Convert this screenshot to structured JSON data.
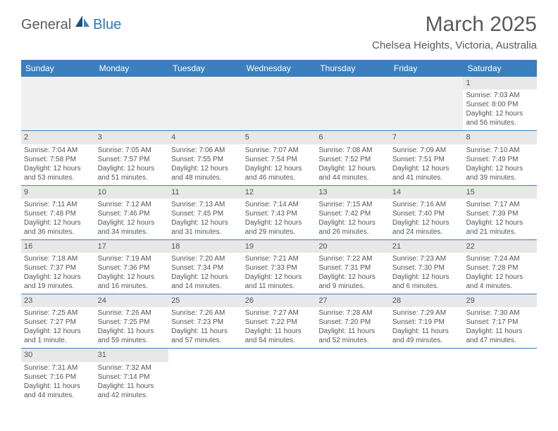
{
  "logo": {
    "general": "General",
    "blue": "Blue"
  },
  "title": "March 2025",
  "location": "Chelsea Heights, Victoria, Australia",
  "colors": {
    "header_bg": "#3b7fbf",
    "header_text": "#ffffff",
    "daynum_bg": "#e8e8e8",
    "border": "#3b7fbf",
    "text": "#555555",
    "logo_blue": "#2a7ab8"
  },
  "dayHeaders": [
    "Sunday",
    "Monday",
    "Tuesday",
    "Wednesday",
    "Thursday",
    "Friday",
    "Saturday"
  ],
  "weeks": [
    [
      null,
      null,
      null,
      null,
      null,
      null,
      {
        "n": "1",
        "sr": "Sunrise: 7:03 AM",
        "ss": "Sunset: 8:00 PM",
        "dl1": "Daylight: 12 hours",
        "dl2": "and 56 minutes."
      }
    ],
    [
      {
        "n": "2",
        "sr": "Sunrise: 7:04 AM",
        "ss": "Sunset: 7:58 PM",
        "dl1": "Daylight: 12 hours",
        "dl2": "and 53 minutes."
      },
      {
        "n": "3",
        "sr": "Sunrise: 7:05 AM",
        "ss": "Sunset: 7:57 PM",
        "dl1": "Daylight: 12 hours",
        "dl2": "and 51 minutes."
      },
      {
        "n": "4",
        "sr": "Sunrise: 7:06 AM",
        "ss": "Sunset: 7:55 PM",
        "dl1": "Daylight: 12 hours",
        "dl2": "and 48 minutes."
      },
      {
        "n": "5",
        "sr": "Sunrise: 7:07 AM",
        "ss": "Sunset: 7:54 PM",
        "dl1": "Daylight: 12 hours",
        "dl2": "and 46 minutes."
      },
      {
        "n": "6",
        "sr": "Sunrise: 7:08 AM",
        "ss": "Sunset: 7:52 PM",
        "dl1": "Daylight: 12 hours",
        "dl2": "and 44 minutes."
      },
      {
        "n": "7",
        "sr": "Sunrise: 7:09 AM",
        "ss": "Sunset: 7:51 PM",
        "dl1": "Daylight: 12 hours",
        "dl2": "and 41 minutes."
      },
      {
        "n": "8",
        "sr": "Sunrise: 7:10 AM",
        "ss": "Sunset: 7:49 PM",
        "dl1": "Daylight: 12 hours",
        "dl2": "and 39 minutes."
      }
    ],
    [
      {
        "n": "9",
        "sr": "Sunrise: 7:11 AM",
        "ss": "Sunset: 7:48 PM",
        "dl1": "Daylight: 12 hours",
        "dl2": "and 36 minutes."
      },
      {
        "n": "10",
        "sr": "Sunrise: 7:12 AM",
        "ss": "Sunset: 7:46 PM",
        "dl1": "Daylight: 12 hours",
        "dl2": "and 34 minutes."
      },
      {
        "n": "11",
        "sr": "Sunrise: 7:13 AM",
        "ss": "Sunset: 7:45 PM",
        "dl1": "Daylight: 12 hours",
        "dl2": "and 31 minutes."
      },
      {
        "n": "12",
        "sr": "Sunrise: 7:14 AM",
        "ss": "Sunset: 7:43 PM",
        "dl1": "Daylight: 12 hours",
        "dl2": "and 29 minutes."
      },
      {
        "n": "13",
        "sr": "Sunrise: 7:15 AM",
        "ss": "Sunset: 7:42 PM",
        "dl1": "Daylight: 12 hours",
        "dl2": "and 26 minutes."
      },
      {
        "n": "14",
        "sr": "Sunrise: 7:16 AM",
        "ss": "Sunset: 7:40 PM",
        "dl1": "Daylight: 12 hours",
        "dl2": "and 24 minutes."
      },
      {
        "n": "15",
        "sr": "Sunrise: 7:17 AM",
        "ss": "Sunset: 7:39 PM",
        "dl1": "Daylight: 12 hours",
        "dl2": "and 21 minutes."
      }
    ],
    [
      {
        "n": "16",
        "sr": "Sunrise: 7:18 AM",
        "ss": "Sunset: 7:37 PM",
        "dl1": "Daylight: 12 hours",
        "dl2": "and 19 minutes."
      },
      {
        "n": "17",
        "sr": "Sunrise: 7:19 AM",
        "ss": "Sunset: 7:36 PM",
        "dl1": "Daylight: 12 hours",
        "dl2": "and 16 minutes."
      },
      {
        "n": "18",
        "sr": "Sunrise: 7:20 AM",
        "ss": "Sunset: 7:34 PM",
        "dl1": "Daylight: 12 hours",
        "dl2": "and 14 minutes."
      },
      {
        "n": "19",
        "sr": "Sunrise: 7:21 AM",
        "ss": "Sunset: 7:33 PM",
        "dl1": "Daylight: 12 hours",
        "dl2": "and 11 minutes."
      },
      {
        "n": "20",
        "sr": "Sunrise: 7:22 AM",
        "ss": "Sunset: 7:31 PM",
        "dl1": "Daylight: 12 hours",
        "dl2": "and 9 minutes."
      },
      {
        "n": "21",
        "sr": "Sunrise: 7:23 AM",
        "ss": "Sunset: 7:30 PM",
        "dl1": "Daylight: 12 hours",
        "dl2": "and 6 minutes."
      },
      {
        "n": "22",
        "sr": "Sunrise: 7:24 AM",
        "ss": "Sunset: 7:28 PM",
        "dl1": "Daylight: 12 hours",
        "dl2": "and 4 minutes."
      }
    ],
    [
      {
        "n": "23",
        "sr": "Sunrise: 7:25 AM",
        "ss": "Sunset: 7:27 PM",
        "dl1": "Daylight: 12 hours",
        "dl2": "and 1 minute."
      },
      {
        "n": "24",
        "sr": "Sunrise: 7:26 AM",
        "ss": "Sunset: 7:25 PM",
        "dl1": "Daylight: 11 hours",
        "dl2": "and 59 minutes."
      },
      {
        "n": "25",
        "sr": "Sunrise: 7:26 AM",
        "ss": "Sunset: 7:23 PM",
        "dl1": "Daylight: 11 hours",
        "dl2": "and 57 minutes."
      },
      {
        "n": "26",
        "sr": "Sunrise: 7:27 AM",
        "ss": "Sunset: 7:22 PM",
        "dl1": "Daylight: 11 hours",
        "dl2": "and 54 minutes."
      },
      {
        "n": "27",
        "sr": "Sunrise: 7:28 AM",
        "ss": "Sunset: 7:20 PM",
        "dl1": "Daylight: 11 hours",
        "dl2": "and 52 minutes."
      },
      {
        "n": "28",
        "sr": "Sunrise: 7:29 AM",
        "ss": "Sunset: 7:19 PM",
        "dl1": "Daylight: 11 hours",
        "dl2": "and 49 minutes."
      },
      {
        "n": "29",
        "sr": "Sunrise: 7:30 AM",
        "ss": "Sunset: 7:17 PM",
        "dl1": "Daylight: 11 hours",
        "dl2": "and 47 minutes."
      }
    ],
    [
      {
        "n": "30",
        "sr": "Sunrise: 7:31 AM",
        "ss": "Sunset: 7:16 PM",
        "dl1": "Daylight: 11 hours",
        "dl2": "and 44 minutes."
      },
      {
        "n": "31",
        "sr": "Sunrise: 7:32 AM",
        "ss": "Sunset: 7:14 PM",
        "dl1": "Daylight: 11 hours",
        "dl2": "and 42 minutes."
      },
      null,
      null,
      null,
      null,
      null
    ]
  ]
}
